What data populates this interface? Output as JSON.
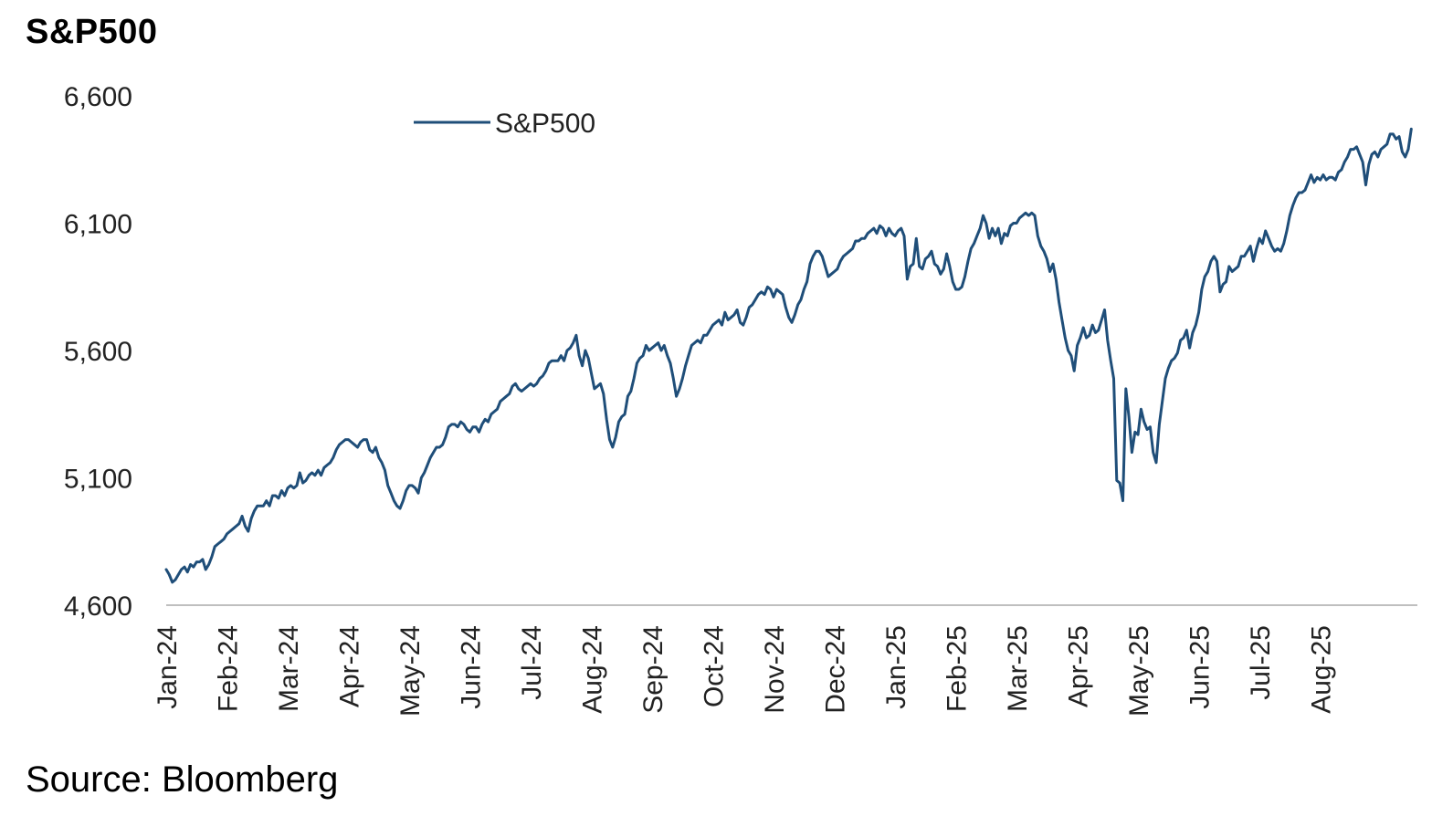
{
  "title": "S&P500",
  "source": "Source: Bloomberg",
  "chart_data": {
    "type": "line",
    "title": "S&P500",
    "xlabel": "",
    "ylabel": "",
    "ylim": [
      4600,
      6600
    ],
    "yticks": [
      4600,
      5100,
      5600,
      6100,
      6600
    ],
    "ytick_labels": [
      "4,600",
      "5,100",
      "5,600",
      "6,100",
      "6,600"
    ],
    "xlim": [
      0,
      20.6
    ],
    "xticks": [
      0,
      1,
      2,
      3,
      4,
      5,
      6,
      7,
      8,
      9,
      10,
      11,
      12,
      13,
      14,
      15,
      16,
      17,
      18,
      19
    ],
    "xtick_labels": [
      "Jan-24",
      "Feb-24",
      "Mar-24",
      "Apr-24",
      "May-24",
      "Jun-24",
      "Jul-24",
      "Aug-24",
      "Sep-24",
      "Oct-24",
      "Nov-24",
      "Dec-24",
      "Jan-25",
      "Feb-25",
      "Mar-25",
      "Apr-25",
      "May-25",
      "Jun-25",
      "Jul-25",
      "Aug-25"
    ],
    "legend": "top-left",
    "line_color": "#1F4E79",
    "series": [
      {
        "name": "S&P500",
        "x": [
          0.0,
          0.05,
          0.1,
          0.15,
          0.2,
          0.25,
          0.3,
          0.35,
          0.4,
          0.45,
          0.5,
          0.55,
          0.6,
          0.65,
          0.7,
          0.75,
          0.8,
          0.85,
          0.9,
          0.95,
          1.0,
          1.05,
          1.1,
          1.15,
          1.2,
          1.25,
          1.3,
          1.35,
          1.4,
          1.45,
          1.5,
          1.55,
          1.6,
          1.65,
          1.7,
          1.75,
          1.8,
          1.85,
          1.9,
          1.95,
          2.0,
          2.05,
          2.1,
          2.15,
          2.2,
          2.25,
          2.3,
          2.35,
          2.4,
          2.45,
          2.5,
          2.55,
          2.6,
          2.65,
          2.7,
          2.75,
          2.8,
          2.85,
          2.9,
          2.95,
          3.0,
          3.05,
          3.1,
          3.15,
          3.2,
          3.25,
          3.3,
          3.35,
          3.4,
          3.45,
          3.5,
          3.55,
          3.6,
          3.65,
          3.7,
          3.75,
          3.8,
          3.85,
          3.9,
          3.95,
          4.0,
          4.05,
          4.1,
          4.15,
          4.2,
          4.25,
          4.3,
          4.35,
          4.4,
          4.45,
          4.5,
          4.55,
          4.6,
          4.65,
          4.7,
          4.75,
          4.8,
          4.85,
          4.9,
          4.95,
          5.0,
          5.05,
          5.1,
          5.15,
          5.2,
          5.25,
          5.3,
          5.35,
          5.4,
          5.45,
          5.5,
          5.55,
          5.6,
          5.65,
          5.7,
          5.75,
          5.8,
          5.85,
          5.9,
          5.95,
          6.0,
          6.05,
          6.1,
          6.15,
          6.2,
          6.25,
          6.3,
          6.35,
          6.4,
          6.45,
          6.5,
          6.55,
          6.6,
          6.65,
          6.7,
          6.75,
          6.8,
          6.85,
          6.9,
          6.95,
          7.0,
          7.05,
          7.1,
          7.15,
          7.2,
          7.25,
          7.3,
          7.35,
          7.4,
          7.45,
          7.5,
          7.55,
          7.6,
          7.65,
          7.7,
          7.75,
          7.8,
          7.85,
          7.9,
          7.95,
          8.0,
          8.05,
          8.1,
          8.15,
          8.2,
          8.25,
          8.3,
          8.35,
          8.4,
          8.45,
          8.5,
          8.55,
          8.6,
          8.65,
          8.7,
          8.75,
          8.8,
          8.85,
          8.9,
          8.95,
          9.0,
          9.05,
          9.1,
          9.15,
          9.2,
          9.25,
          9.3,
          9.35,
          9.4,
          9.45,
          9.5,
          9.55,
          9.6,
          9.65,
          9.7,
          9.75,
          9.8,
          9.85,
          9.9,
          9.95,
          10.0,
          10.05,
          10.1,
          10.15,
          10.2,
          10.25,
          10.3,
          10.35,
          10.4,
          10.45,
          10.5,
          10.55,
          10.6,
          10.65,
          10.7,
          10.75,
          10.8,
          10.85,
          10.9,
          10.95,
          11.0,
          11.05,
          11.1,
          11.15,
          11.2,
          11.25,
          11.3,
          11.35,
          11.4,
          11.45,
          11.5,
          11.55,
          11.6,
          11.65,
          11.7,
          11.75,
          11.8,
          11.85,
          11.9,
          11.95,
          12.0,
          12.05,
          12.1,
          12.15,
          12.2,
          12.25,
          12.3,
          12.35,
          12.4,
          12.45,
          12.5,
          12.55,
          12.6,
          12.65,
          12.7,
          12.75,
          12.8,
          12.85,
          12.9,
          12.95,
          13.0,
          13.05,
          13.1,
          13.15,
          13.2,
          13.25,
          13.3,
          13.35,
          13.4,
          13.45,
          13.5,
          13.55,
          13.6,
          13.65,
          13.7,
          13.75,
          13.8,
          13.85,
          13.9,
          13.95,
          14.0,
          14.05,
          14.1,
          14.15,
          14.2,
          14.25,
          14.3,
          14.35,
          14.4,
          14.45,
          14.5,
          14.55,
          14.6,
          14.65,
          14.7,
          14.75,
          14.8,
          14.85,
          14.9,
          14.95,
          15.0,
          15.05,
          15.1,
          15.15,
          15.2,
          15.25,
          15.3,
          15.35,
          15.4,
          15.45,
          15.5,
          15.55,
          15.6,
          15.65,
          15.7,
          15.75,
          15.8,
          15.85,
          15.9,
          15.95,
          16.0,
          16.05,
          16.1,
          16.15,
          16.2,
          16.25,
          16.3,
          16.35,
          16.4,
          16.45,
          16.5,
          16.55,
          16.6,
          16.65,
          16.7,
          16.75,
          16.8,
          16.85,
          16.9,
          16.95,
          17.0,
          17.05,
          17.1,
          17.15,
          17.2,
          17.25,
          17.3,
          17.35,
          17.4,
          17.45,
          17.5,
          17.55,
          17.6,
          17.65,
          17.7,
          17.75,
          17.8,
          17.85,
          17.9,
          17.95,
          18.0,
          18.05,
          18.1,
          18.15,
          18.2,
          18.25,
          18.3,
          18.35,
          18.4,
          18.45,
          18.5,
          18.55,
          18.6,
          18.65,
          18.7,
          18.75,
          18.8,
          18.85,
          18.9,
          18.95,
          19.0,
          19.05,
          19.1,
          19.15,
          19.2,
          19.25,
          19.3,
          19.35,
          19.4,
          19.45,
          19.5,
          19.55,
          19.6,
          19.65,
          19.7,
          19.75,
          19.8,
          19.85,
          19.9,
          19.95,
          20.0,
          20.05,
          20.1,
          20.15,
          20.2,
          20.25,
          20.3,
          20.35,
          20.4,
          20.45,
          20.5
        ],
        "y": [
          4740,
          4720,
          4690,
          4700,
          4720,
          4740,
          4750,
          4730,
          4760,
          4750,
          4770,
          4770,
          4780,
          4740,
          4760,
          4790,
          4830,
          4840,
          4850,
          4860,
          4880,
          4890,
          4900,
          4910,
          4920,
          4950,
          4910,
          4890,
          4940,
          4970,
          4990,
          4990,
          4990,
          5010,
          4990,
          5030,
          5030,
          5020,
          5050,
          5030,
          5060,
          5070,
          5060,
          5070,
          5120,
          5080,
          5090,
          5110,
          5120,
          5110,
          5130,
          5110,
          5140,
          5150,
          5160,
          5180,
          5210,
          5230,
          5240,
          5250,
          5250,
          5240,
          5230,
          5220,
          5240,
          5250,
          5250,
          5210,
          5200,
          5220,
          5180,
          5160,
          5130,
          5070,
          5040,
          5010,
          4990,
          4980,
          5010,
          5050,
          5070,
          5070,
          5060,
          5040,
          5100,
          5120,
          5150,
          5180,
          5200,
          5220,
          5220,
          5230,
          5260,
          5300,
          5310,
          5310,
          5300,
          5320,
          5310,
          5290,
          5280,
          5300,
          5300,
          5280,
          5310,
          5330,
          5320,
          5350,
          5360,
          5370,
          5400,
          5410,
          5420,
          5430,
          5460,
          5470,
          5450,
          5440,
          5450,
          5460,
          5470,
          5460,
          5470,
          5490,
          5500,
          5520,
          5550,
          5560,
          5560,
          5560,
          5580,
          5560,
          5600,
          5610,
          5630,
          5660,
          5580,
          5540,
          5600,
          5570,
          5510,
          5450,
          5460,
          5470,
          5430,
          5330,
          5250,
          5220,
          5260,
          5320,
          5340,
          5350,
          5420,
          5440,
          5490,
          5550,
          5570,
          5580,
          5620,
          5600,
          5610,
          5620,
          5630,
          5600,
          5620,
          5580,
          5550,
          5490,
          5420,
          5450,
          5490,
          5540,
          5580,
          5620,
          5630,
          5640,
          5630,
          5660,
          5660,
          5680,
          5700,
          5710,
          5720,
          5700,
          5750,
          5720,
          5730,
          5740,
          5760,
          5710,
          5700,
          5730,
          5770,
          5780,
          5800,
          5820,
          5830,
          5820,
          5850,
          5840,
          5810,
          5840,
          5830,
          5820,
          5770,
          5730,
          5710,
          5740,
          5780,
          5800,
          5840,
          5870,
          5940,
          5970,
          5990,
          5990,
          5970,
          5930,
          5890,
          5900,
          5910,
          5920,
          5950,
          5970,
          5980,
          5990,
          6000,
          6030,
          6030,
          6040,
          6040,
          6060,
          6070,
          6080,
          6060,
          6090,
          6080,
          6050,
          6080,
          6060,
          6050,
          6070,
          6080,
          6050,
          5880,
          5930,
          5940,
          6040,
          5930,
          5920,
          5960,
          5970,
          5990,
          5940,
          5930,
          5900,
          5920,
          5980,
          5930,
          5870,
          5840,
          5840,
          5850,
          5890,
          5950,
          6000,
          6020,
          6050,
          6080,
          6130,
          6100,
          6040,
          6080,
          6050,
          6080,
          6020,
          6060,
          6050,
          6090,
          6100,
          6100,
          6120,
          6130,
          6140,
          6130,
          6140,
          6130,
          6050,
          6010,
          5990,
          5960,
          5910,
          5940,
          5880,
          5790,
          5720,
          5650,
          5600,
          5580,
          5520,
          5620,
          5650,
          5690,
          5650,
          5660,
          5700,
          5670,
          5680,
          5720,
          5760,
          5640,
          5560,
          5490,
          5090,
          5080,
          5010,
          5450,
          5340,
          5200,
          5280,
          5270,
          5370,
          5320,
          5290,
          5300,
          5200,
          5160,
          5310,
          5400,
          5490,
          5530,
          5560,
          5570,
          5590,
          5640,
          5650,
          5680,
          5610,
          5670,
          5700,
          5750,
          5840,
          5890,
          5910,
          5950,
          5970,
          5950,
          5830,
          5860,
          5870,
          5930,
          5910,
          5920,
          5930,
          5970,
          5970,
          5990,
          6010,
          5950,
          6000,
          6040,
          6020,
          6070,
          6040,
          6010,
          5990,
          6000,
          5990,
          6020,
          6070,
          6130,
          6170,
          6200,
          6220,
          6220,
          6230,
          6260,
          6290,
          6260,
          6280,
          6270,
          6290,
          6270,
          6280,
          6280,
          6270,
          6300,
          6310,
          6340,
          6360,
          6390,
          6390,
          6400,
          6370,
          6340,
          6250,
          6330,
          6370,
          6380,
          6360,
          6390,
          6400,
          6410,
          6450,
          6450,
          6430,
          6440,
          6380,
          6360,
          6390,
          6470
        ]
      }
    ]
  }
}
